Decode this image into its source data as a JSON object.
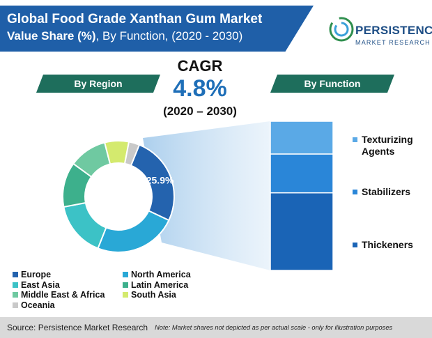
{
  "header": {
    "title_line1": "Global Food Grade Xanthan Gum Market",
    "title_line2_bold": "Value Share (%)",
    "title_line2_rest": ", By Function, (2020 - 2030)"
  },
  "logo": {
    "name": "PERSISTENCE",
    "subtitle": "MARKET RESEARCH"
  },
  "pills": {
    "region": "By Region",
    "function": "By Function"
  },
  "cagr": {
    "label": "CAGR",
    "value": "4.8%",
    "period": "(2020 – 2030)"
  },
  "chart_data": [
    {
      "type": "pie",
      "subtitle": "By Region",
      "categories": [
        "Europe",
        "North America",
        "East Asia",
        "Latin America",
        "Middle East & Africa",
        "South Asia",
        "Oceania"
      ],
      "values": [
        25.9,
        24.0,
        16.0,
        13.0,
        11.0,
        7.0,
        3.1
      ],
      "colors": [
        "#2463ae",
        "#29a8d6",
        "#3cc2c6",
        "#3db08c",
        "#6fc9a1",
        "#d4ea6e",
        "#c9c9c9"
      ],
      "data_labels": {
        "Europe": "25.9%"
      }
    },
    {
      "type": "bar",
      "subtitle": "By Function",
      "stacked": true,
      "categories": [
        "Texturizing Agents",
        "Stabilizers",
        "Thickeners"
      ],
      "values": [
        22,
        26,
        52
      ],
      "colors": [
        "#5aa9e6",
        "#2a86d8",
        "#1a64b6"
      ]
    }
  ],
  "legend": [
    {
      "label": "Europe",
      "color": "#2463ae"
    },
    {
      "label": "North America",
      "color": "#29a8d6"
    },
    {
      "label": "East Asia",
      "color": "#3cc2c6"
    },
    {
      "label": "Latin America",
      "color": "#3db08c"
    },
    {
      "label": "Middle East & Africa",
      "color": "#6fc9a1"
    },
    {
      "label": "South Asia",
      "color": "#d4ea6e"
    },
    {
      "label": "Oceania",
      "color": "#c9c9c9"
    }
  ],
  "function_labels": [
    {
      "label": "Texturizing Agents",
      "color": "#5aa9e6"
    },
    {
      "label": "Stabilizers",
      "color": "#2a86d8"
    },
    {
      "label": "Thickeners",
      "color": "#1a64b6"
    }
  ],
  "footer": {
    "source": "Source: Persistence Market Research",
    "note": "Note: Market shares not depicted as per actual scale - only for illustration purposes"
  }
}
